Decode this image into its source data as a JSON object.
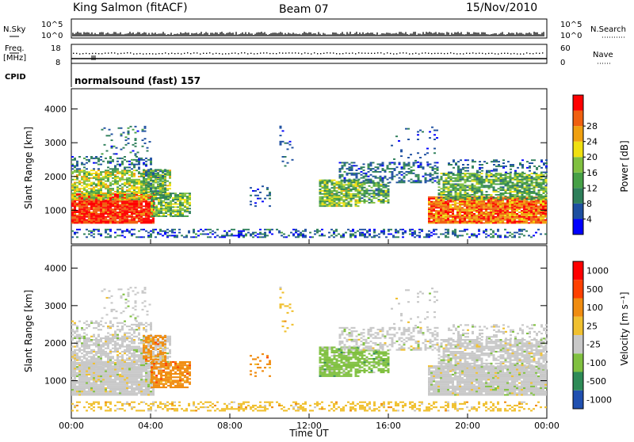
{
  "header": {
    "title": "King Salmon (fitACF)",
    "beam": "Beam 07",
    "date": "15/Nov/2010"
  },
  "top_panels": {
    "nsky_label": "N.Sky",
    "nsky_ticks": [
      "10^5",
      "10^0"
    ],
    "nsearch_label": "N.Search",
    "freq_label_1": "Freq.",
    "freq_label_2": "[MHz]",
    "freq_ticks": [
      "18",
      "8"
    ],
    "nave_label": "Nave",
    "nave_ticks": [
      "60",
      "0"
    ],
    "cpid_label": "CPID",
    "cpid_value": "normalsound (fast) 157"
  },
  "colors": {
    "power": [
      "#0000ff",
      "#1d4fa0",
      "#2e7f5a",
      "#46a046",
      "#80c040",
      "#f0e010",
      "#f0a010",
      "#f06010",
      "#ff0000"
    ],
    "velocity": [
      "#2050b0",
      "#2e8b57",
      "#80c040",
      "#c8c8c8",
      "#f0c030",
      "#f08c10",
      "#ff4000",
      "#ff0000"
    ]
  },
  "chart_data": [
    {
      "type": "heatmap",
      "name": "power",
      "ylabel": "Slant Range [km]",
      "ylim": [
        0,
        4600
      ],
      "yticks": [
        1000,
        2000,
        3000,
        4000
      ],
      "xlim": [
        0,
        24
      ],
      "xticks": [
        "00:00",
        "04:00",
        "08:00",
        "12:00",
        "16:00",
        "20:00",
        "00:00"
      ],
      "colorbar": {
        "label": "Power [dB]",
        "ticks": [
          "4",
          "8",
          "12",
          "16",
          "20",
          "24",
          "28"
        ]
      }
    },
    {
      "type": "heatmap",
      "name": "velocity",
      "ylabel": "Slant Range [km]",
      "ylim": [
        0,
        4600
      ],
      "yticks": [
        1000,
        2000,
        3000,
        4000
      ],
      "xlim": [
        0,
        24
      ],
      "xticks": [
        "00:00",
        "04:00",
        "08:00",
        "12:00",
        "16:00",
        "20:00",
        "00:00"
      ],
      "xlabel": "Time UT",
      "colorbar": {
        "label": "Velocity [m s⁻¹]",
        "ticks": [
          "1000",
          "500",
          "100",
          "25",
          "-25",
          "-100",
          "-500",
          "-1000"
        ]
      }
    }
  ]
}
